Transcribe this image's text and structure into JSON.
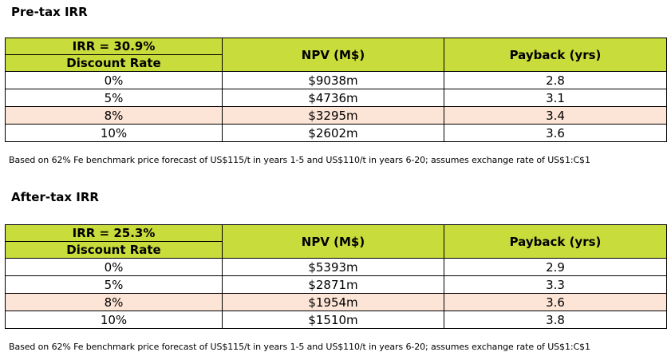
{
  "sections": [
    {
      "title": "Pre-tax IRR",
      "irr_label": "IRR = 30.9%",
      "discount_label": "Discount Rate",
      "npv_header": "NPV (M$)",
      "payback_header": "Payback (yrs)",
      "rows": [
        {
          "rate": "0%",
          "npv": "$9038m",
          "payback": "2.8",
          "highlight": false
        },
        {
          "rate": "5%",
          "npv": "$4736m",
          "payback": "3.1",
          "highlight": false
        },
        {
          "rate": "8%",
          "npv": "$3295m",
          "payback": "3.4",
          "highlight": true
        },
        {
          "rate": "10%",
          "npv": "$2602m",
          "payback": "3.6",
          "highlight": false
        }
      ],
      "footnote": "Based on 62% Fe benchmark price forecast of US$115/t in years 1-5 and US$110/t in years 6-20; assumes exchange rate of US$1:C$1"
    },
    {
      "title": "After-tax IRR",
      "irr_label": "IRR = 25.3%",
      "discount_label": "Discount Rate",
      "npv_header": "NPV (M$)",
      "payback_header": "Payback (yrs)",
      "rows": [
        {
          "rate": "0%",
          "npv": "$5393m",
          "payback": "2.9",
          "highlight": false
        },
        {
          "rate": "5%",
          "npv": "$2871m",
          "payback": "3.3",
          "highlight": false
        },
        {
          "rate": "8%",
          "npv": "$1954m",
          "payback": "3.6",
          "highlight": true
        },
        {
          "rate": "10%",
          "npv": "$1510m",
          "payback": "3.8",
          "highlight": false
        }
      ],
      "footnote": "Based on 62% Fe benchmark price forecast of US$115/t in years 1-5 and US$110/t in years 6-20; assumes exchange rate of US$1:C$1"
    }
  ],
  "colors": {
    "header_bg": "#c8dc3c",
    "highlight_row_bg": "#fce4d6"
  }
}
